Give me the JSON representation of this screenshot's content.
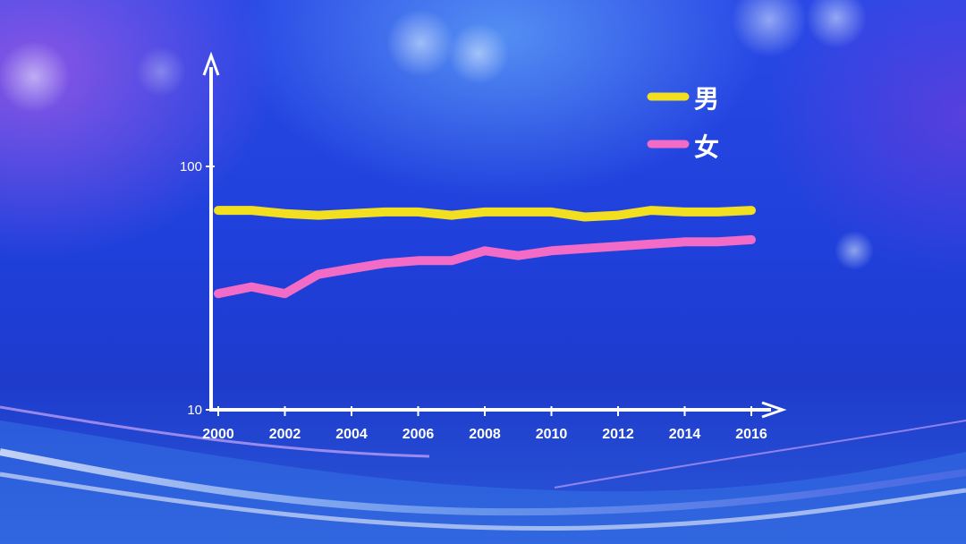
{
  "chart_data": {
    "type": "line",
    "title": "",
    "xlabel": "",
    "ylabel": "",
    "y_scale": "log",
    "ylim": [
      10,
      100
    ],
    "yticks": [
      "100",
      "10"
    ],
    "xticks": [
      "2000",
      "2002",
      "2004",
      "2006",
      "2008",
      "2010",
      "2012",
      "2014",
      "2016"
    ],
    "x": [
      2000,
      2001,
      2002,
      2003,
      2004,
      2005,
      2006,
      2007,
      2008,
      2009,
      2010,
      2011,
      2012,
      2013,
      2014,
      2015,
      2016
    ],
    "series": [
      {
        "name": "男",
        "color": "#f2df1f",
        "values": [
          66,
          66,
          64,
          63,
          64,
          65,
          65,
          63,
          65,
          65,
          65,
          62,
          63,
          66,
          65,
          65,
          66
        ]
      },
      {
        "name": "女",
        "color": "#f26bc6",
        "values": [
          30,
          32,
          30,
          36,
          38,
          40,
          41,
          41,
          45,
          43,
          45,
          46,
          47,
          48,
          49,
          49,
          50
        ]
      }
    ],
    "legend_position": "top-right",
    "grid": false
  }
}
